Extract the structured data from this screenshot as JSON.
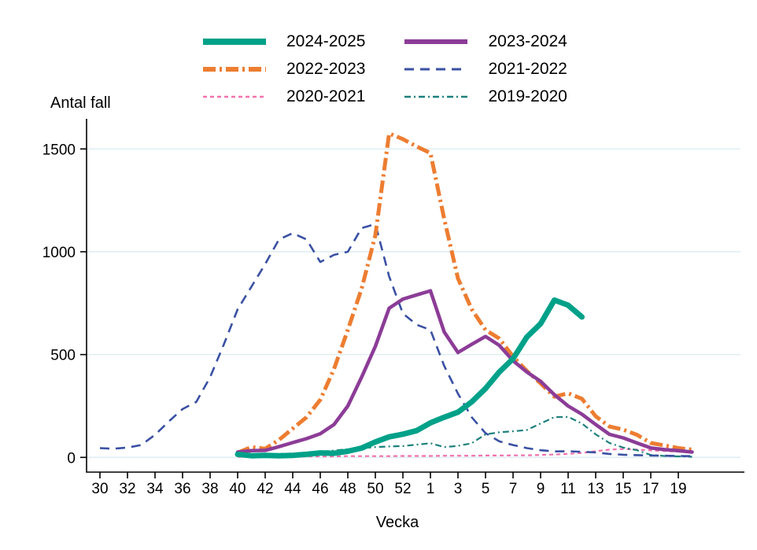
{
  "title": "Antal fall",
  "chart_data": {
    "type": "line",
    "ylabel": "Antal fall",
    "xlabel": "Vecka",
    "ylim": [
      0,
      1600
    ],
    "yticks": [
      0,
      500,
      1000,
      1500
    ],
    "grid": "horizontal",
    "grid_color": "#E0EDF3",
    "axis_color": "#000000",
    "legend_position": "top-center",
    "categories": [
      "30",
      "31",
      "32",
      "33",
      "34",
      "35",
      "36",
      "37",
      "38",
      "39",
      "40",
      "41",
      "42",
      "43",
      "44",
      "45",
      "46",
      "47",
      "48",
      "49",
      "50",
      "51",
      "52",
      "53",
      "1",
      "2",
      "3",
      "4",
      "5",
      "6",
      "7",
      "8",
      "9",
      "10",
      "11",
      "12",
      "13",
      "14",
      "15",
      "16",
      "17",
      "18",
      "19",
      "20"
    ],
    "x_tick_indices": [
      0,
      2,
      4,
      6,
      8,
      10,
      12,
      14,
      16,
      18,
      20,
      22,
      24,
      26,
      28,
      30,
      32,
      34,
      36,
      38,
      40,
      42
    ],
    "x_tick_labels": [
      "30",
      "32",
      "34",
      "36",
      "38",
      "40",
      "42",
      "44",
      "46",
      "48",
      "50",
      "52",
      "1",
      "3",
      "5",
      "7",
      "9",
      "11",
      "13",
      "15",
      "17",
      "19"
    ],
    "series": [
      {
        "name": "2024-2025",
        "color": "#00A189",
        "width": 7,
        "dash": null,
        "values": [
          null,
          null,
          null,
          null,
          null,
          null,
          null,
          null,
          null,
          null,
          15,
          8,
          10,
          8,
          10,
          15,
          22,
          20,
          30,
          45,
          75,
          100,
          113,
          130,
          168,
          195,
          220,
          270,
          335,
          415,
          480,
          585,
          650,
          765,
          740,
          683,
          null,
          null,
          null,
          null,
          null,
          null,
          null,
          null
        ]
      },
      {
        "name": "2023-2024",
        "color": "#8C3C97",
        "width": 4.5,
        "dash": null,
        "values": [
          null,
          null,
          null,
          null,
          null,
          null,
          null,
          null,
          null,
          null,
          26,
          33,
          34,
          52,
          72,
          91,
          115,
          160,
          250,
          390,
          540,
          725,
          770,
          790,
          810,
          610,
          510,
          550,
          588,
          545,
          470,
          415,
          370,
          305,
          250,
          210,
          160,
          112,
          95,
          70,
          46,
          38,
          33,
          26
        ]
      },
      {
        "name": "2022-2023",
        "color": "#ED7D31",
        "width": 5,
        "dash": "16,5,3,5",
        "values": [
          null,
          null,
          null,
          null,
          null,
          null,
          null,
          null,
          null,
          null,
          23,
          50,
          42,
          85,
          140,
          195,
          280,
          430,
          620,
          820,
          1080,
          1575,
          1548,
          1512,
          1480,
          1160,
          870,
          720,
          620,
          578,
          490,
          420,
          360,
          295,
          312,
          285,
          200,
          150,
          135,
          110,
          70,
          58,
          45,
          38
        ]
      },
      {
        "name": "2021-2022",
        "color": "#3A51A3",
        "width": 2.6,
        "dash": "12,8",
        "values": [
          45,
          42,
          48,
          60,
          110,
          175,
          235,
          270,
          390,
          550,
          720,
          830,
          940,
          1060,
          1090,
          1060,
          950,
          985,
          1000,
          1115,
          1135,
          880,
          700,
          645,
          620,
          445,
          310,
          195,
          118,
          78,
          60,
          45,
          35,
          29,
          30,
          27,
          24,
          17,
          13,
          11,
          9,
          8,
          7,
          6
        ]
      },
      {
        "name": "2020-2021",
        "color": "#F272AC",
        "width": 2.2,
        "dash": "5,4",
        "values": [
          null,
          null,
          null,
          null,
          null,
          null,
          null,
          null,
          null,
          null,
          3,
          3,
          3,
          4,
          4,
          5,
          5,
          5,
          6,
          6,
          6,
          6,
          7,
          7,
          7,
          8,
          8,
          8,
          9,
          9,
          10,
          10,
          12,
          14,
          17,
          22,
          30,
          38,
          41,
          38,
          34,
          31,
          28,
          24
        ]
      },
      {
        "name": "2019-2020",
        "color": "#1C807C",
        "width": 2.2,
        "dash": "8,4,2,4",
        "values": [
          null,
          null,
          null,
          null,
          null,
          null,
          null,
          null,
          null,
          null,
          12,
          13,
          14,
          16,
          19,
          23,
          28,
          33,
          40,
          45,
          50,
          53,
          55,
          62,
          69,
          50,
          56,
          69,
          112,
          122,
          127,
          133,
          165,
          196,
          197,
          165,
          112,
          70,
          48,
          35,
          12,
          7,
          5,
          3
        ]
      }
    ],
    "draw_order": [
      4,
      5,
      3,
      2,
      1,
      0
    ],
    "legend_key_widths": [
      8,
      6,
      6,
      3,
      2.5,
      2.5
    ]
  }
}
